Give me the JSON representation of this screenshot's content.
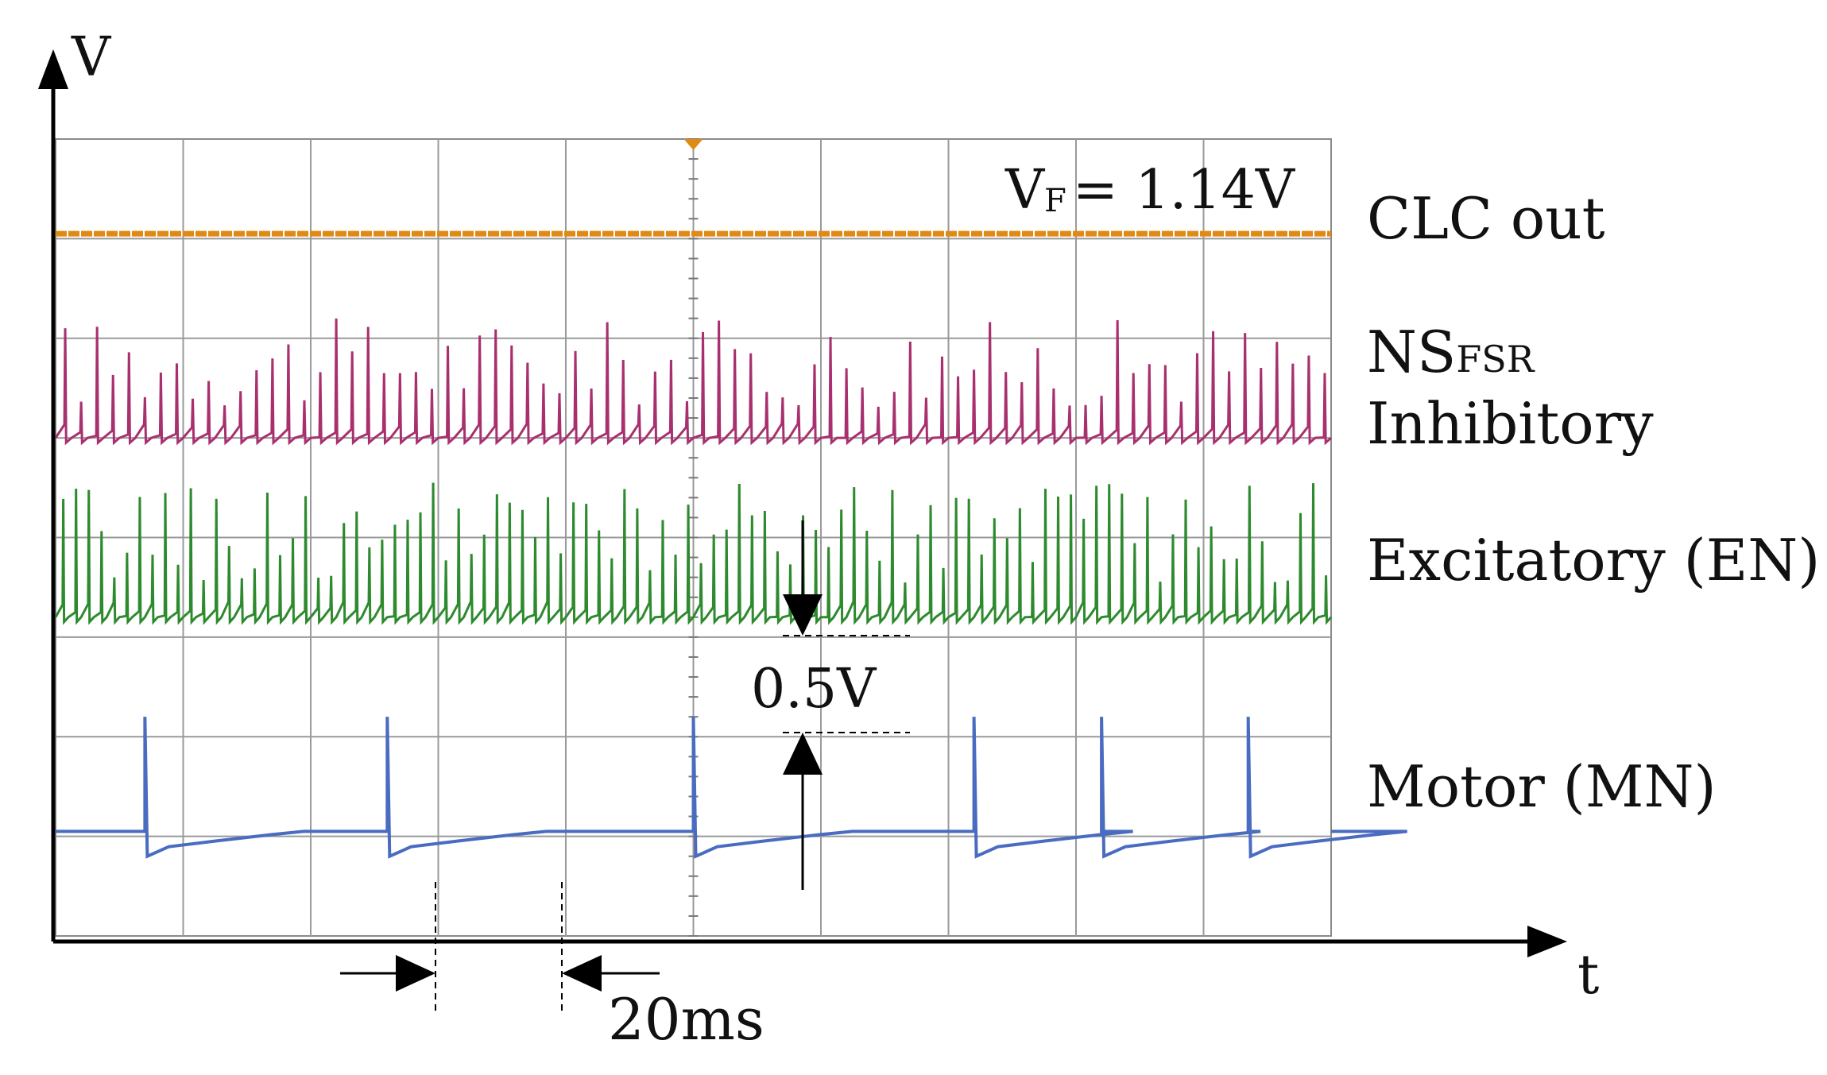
{
  "chart_data": {
    "type": "line",
    "title": "",
    "xlabel": "t",
    "ylabel": "V",
    "grid": true,
    "grid_divisions": {
      "x": 10,
      "y": 8
    },
    "time_per_division": "20ms",
    "time_scale_label": "20ms",
    "voltage_scale_label": "0.5V",
    "annotation": {
      "base": "V",
      "subscript": "F",
      "text": "= 1.14V"
    },
    "series": [
      {
        "name": "CLC out",
        "label_main": "CLC out",
        "color": "#e08a14",
        "kind": "constant",
        "level_div": 7.05
      },
      {
        "name": "NS FSR Inhibitory",
        "label_main": "NS",
        "label_sub": "FSR",
        "label_line2": "Inhibitory",
        "color": "#a8306e",
        "kind": "spike_train",
        "spikes_per_div": 8,
        "baseline_div": 5.0,
        "peak_div": 6.2
      },
      {
        "name": "Excitatory (EN)",
        "label_main": "Excitatory (EN)",
        "color": "#2e8a2e",
        "kind": "spike_train",
        "spikes_per_div": 10,
        "baseline_div": 3.2,
        "peak_div": 4.55
      },
      {
        "name": "Motor (MN)",
        "label_main": "Motor (MN)",
        "color": "#4a6cc0",
        "kind": "spike_events",
        "baseline_div": 1.05,
        "spike_peak_div": 2.2,
        "undershoot_div": 0.8,
        "spike_times_div": [
          0.7,
          2.6,
          5.0,
          7.2,
          8.2,
          9.35
        ]
      }
    ]
  }
}
